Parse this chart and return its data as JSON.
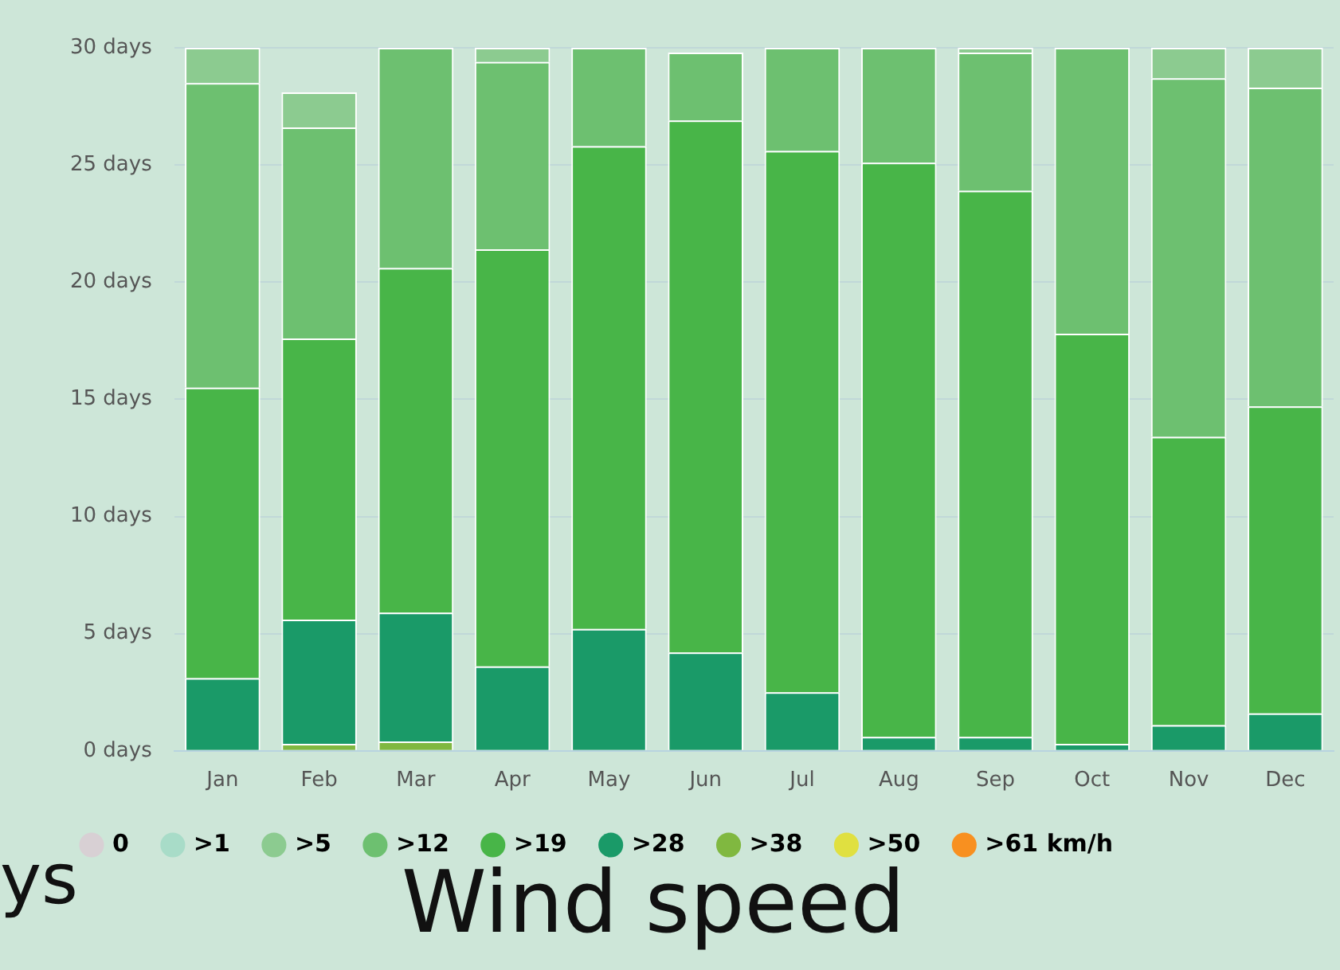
{
  "chart_data": {
    "type": "bar",
    "title": "Wind speed",
    "stacked": true,
    "categories": [
      "Jan",
      "Feb",
      "Mar",
      "Apr",
      "May",
      "Jun",
      "Jul",
      "Aug",
      "Sep",
      "Oct",
      "Nov",
      "Dec"
    ],
    "series": [
      {
        "name": ">61 km/h",
        "color": "#f89020",
        "values": [
          0,
          0,
          0,
          0,
          0,
          0,
          0,
          0,
          0,
          0,
          0,
          0
        ]
      },
      {
        "name": ">50",
        "color": "#e0e040",
        "values": [
          0,
          0,
          0,
          0,
          0,
          0,
          0,
          0,
          0,
          0,
          0,
          0
        ]
      },
      {
        "name": ">38",
        "color": "#80b840",
        "values": [
          0,
          0.3,
          0.4,
          0,
          0,
          0,
          0,
          0,
          0,
          0,
          0,
          0
        ]
      },
      {
        "name": ">28",
        "color": "#1a9a68",
        "values": [
          3.1,
          5.3,
          5.5,
          3.6,
          5.2,
          4.2,
          2.5,
          0.6,
          0.6,
          0.3,
          1.1,
          1.6
        ]
      },
      {
        "name": ">19",
        "color": "#48b548",
        "values": [
          12.4,
          12.0,
          14.7,
          17.8,
          20.6,
          22.7,
          23.1,
          24.5,
          23.3,
          17.5,
          12.3,
          13.1
        ]
      },
      {
        "name": ">12",
        "color": "#6dc070",
        "values": [
          13.0,
          9.0,
          9.4,
          8.0,
          4.2,
          2.9,
          4.4,
          4.9,
          5.9,
          12.2,
          15.3,
          13.6
        ]
      },
      {
        "name": ">5",
        "color": "#8ccb90",
        "values": [
          1.5,
          1.5,
          0,
          0.6,
          0,
          0,
          0,
          0,
          0.2,
          0,
          1.3,
          1.7
        ]
      },
      {
        "name": ">1",
        "color": "#a8dcc8",
        "values": [
          0,
          0,
          0,
          0,
          0,
          0,
          0,
          0,
          0,
          0,
          0,
          0
        ]
      },
      {
        "name": "0",
        "color": "#d8d0d4",
        "values": [
          0,
          0,
          0,
          0,
          0,
          0,
          0,
          0,
          0,
          0,
          0,
          0
        ]
      }
    ],
    "ylim": [
      0,
      30
    ],
    "yticks": [
      {
        "value": 0,
        "label": "0 days"
      },
      {
        "value": 5,
        "label": "5 days"
      },
      {
        "value": 10,
        "label": "10 days"
      },
      {
        "value": 15,
        "label": "15 days"
      },
      {
        "value": 20,
        "label": "20 days"
      },
      {
        "value": 25,
        "label": "25 days"
      },
      {
        "value": 30,
        "label": "30 days"
      }
    ],
    "grid": "y",
    "legend": "bottom",
    "annotations": [
      "ys"
    ]
  }
}
